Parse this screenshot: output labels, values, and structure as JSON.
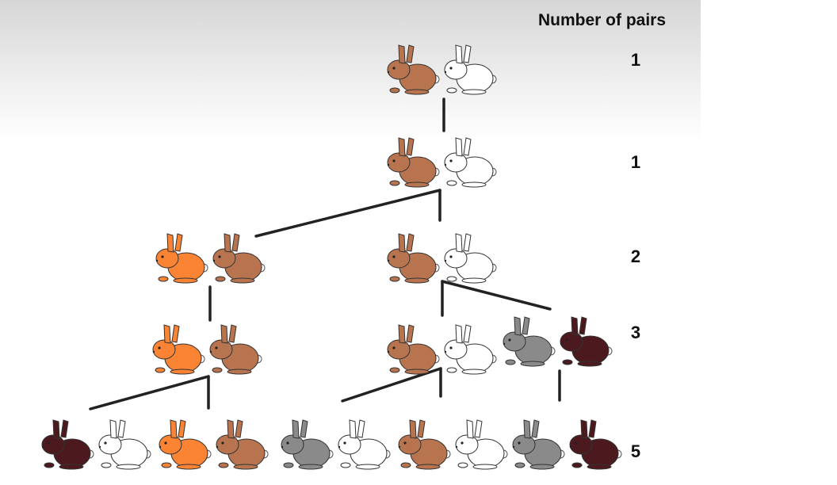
{
  "heading": "Number of pairs",
  "counts": [
    "1",
    "1",
    "2",
    "3",
    "5"
  ],
  "colors": {
    "brown": "#b8744f",
    "white": "#ffffff",
    "orange": "#fa8434",
    "gray": "#8a8a8a",
    "dark": "#4c1a1e",
    "line": "#222222"
  },
  "rows": [
    {
      "pairs": [
        [
          "brown",
          "white"
        ]
      ]
    },
    {
      "pairs": [
        [
          "brown",
          "white"
        ]
      ]
    },
    {
      "pairs": [
        [
          "orange",
          "brown"
        ],
        [
          "brown",
          "white"
        ]
      ]
    },
    {
      "pairs": [
        [
          "orange",
          "brown"
        ],
        [
          "brown",
          "white"
        ],
        [
          "gray",
          "dark"
        ]
      ]
    },
    {
      "pairs": [
        [
          "dark",
          "white"
        ],
        [
          "orange",
          "brown"
        ],
        [
          "gray",
          "white"
        ],
        [
          "brown",
          "white"
        ],
        [
          "gray",
          "dark"
        ]
      ]
    }
  ]
}
